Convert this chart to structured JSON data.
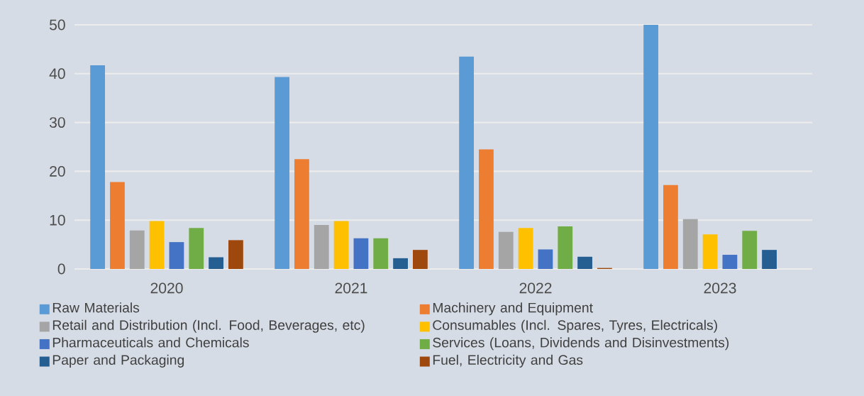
{
  "chart_data": {
    "type": "bar",
    "categories": [
      "2020",
      "2021",
      "2022",
      "2023"
    ],
    "series": [
      {
        "name": "Raw Materials",
        "color": "#5b9bd5",
        "values": [
          41.7,
          39.3,
          43.5,
          50
        ]
      },
      {
        "name": "Machinery and Equipment",
        "color": "#ed7d31",
        "values": [
          17.8,
          22.5,
          24.5,
          17.2
        ]
      },
      {
        "name": "Retail and Distribution (Incl. Food, Beverages, etc)",
        "color": "#a5a5a5",
        "values": [
          7.9,
          9.0,
          7.6,
          10.2
        ]
      },
      {
        "name": "Consumables (Incl. Spares, Tyres, Electricals)",
        "color": "#ffc000",
        "values": [
          9.8,
          9.8,
          8.4,
          7.1
        ]
      },
      {
        "name": "Pharmaceuticals and Chemicals",
        "color": "#4472c4",
        "values": [
          5.5,
          6.3,
          4.0,
          2.9
        ]
      },
      {
        "name": "Services (Loans, Dividends and Disinvestments)",
        "color": "#70ad47",
        "values": [
          8.4,
          6.3,
          8.7,
          7.8
        ]
      },
      {
        "name": "Paper and Packaging",
        "color": "#255e91",
        "values": [
          2.4,
          2.2,
          2.5,
          3.9
        ]
      },
      {
        "name": "Fuel, Electricity and Gas",
        "color": "#9e480e",
        "values": [
          5.9,
          3.9,
          0.2,
          null
        ]
      }
    ],
    "ylim": [
      0,
      50
    ],
    "yticks": [
      0,
      10,
      20,
      30,
      40,
      50
    ],
    "grid": "y",
    "legend": "bottom"
  }
}
